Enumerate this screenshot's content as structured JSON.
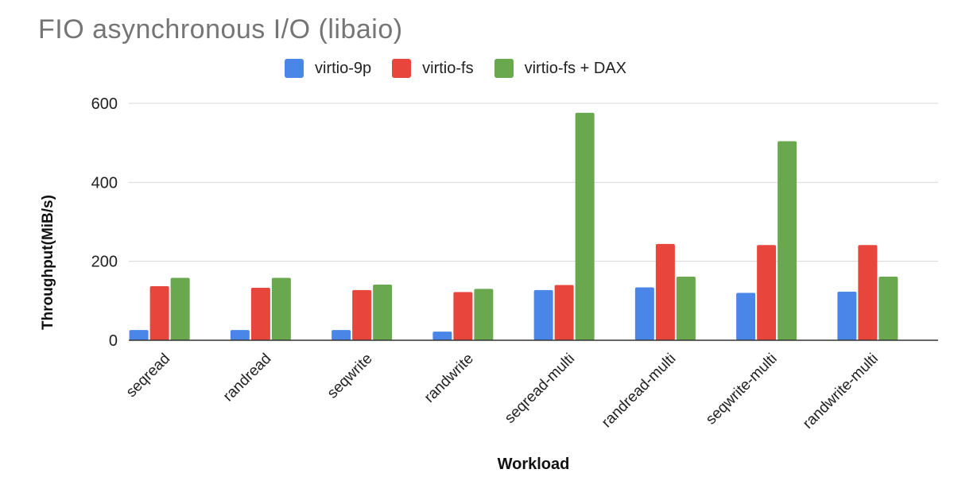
{
  "chart_data": {
    "type": "bar",
    "title": "FIO asynchronous I/O (libaio)",
    "xlabel": "Workload",
    "ylabel": "Throughput(MiB/s)",
    "ylim": [
      0,
      600
    ],
    "yticks": [
      0,
      200,
      400,
      600
    ],
    "grid": true,
    "legend_position": "top",
    "categories": [
      "seqread",
      "randread",
      "seqwrite",
      "randwrite",
      "seqread-multi",
      "randread-multi",
      "seqwrite-multi",
      "randwrite-multi"
    ],
    "series": [
      {
        "name": "virtio-9p",
        "color": "#4a86e8",
        "values": [
          26,
          26,
          26,
          22,
          127,
          134,
          120,
          123
        ]
      },
      {
        "name": "virtio-fs",
        "color": "#e8453c",
        "values": [
          137,
          133,
          127,
          122,
          140,
          244,
          241,
          241
        ]
      },
      {
        "name": "virtio-fs + DAX",
        "color": "#6aa84f",
        "values": [
          158,
          158,
          141,
          130,
          576,
          161,
          504,
          161
        ]
      }
    ]
  }
}
